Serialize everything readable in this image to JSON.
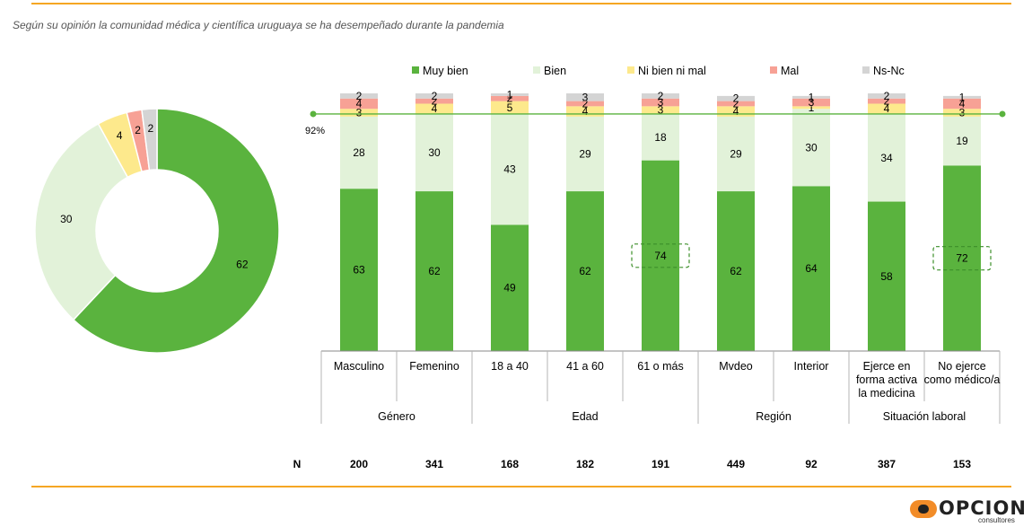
{
  "subtitle": "Según su opinión la comunidad médica y científica uruguaya se ha desempeñado durante la pandemia",
  "colors": {
    "muy_bien": "#5ab33e",
    "bien": "#e2f2d9",
    "ni_bien_ni_mal": "#fde98c",
    "mal": "#f7a195",
    "ns_nc": "#d4d4d4",
    "accent_rule": "#f5a623",
    "reference_line": "#5ab33e",
    "highlight_box": "#3d8f2a"
  },
  "logo": {
    "text": "OPCION",
    "subtitle": "consultores"
  },
  "chart_data": [
    {
      "type": "pie",
      "style": "donut",
      "labels": [
        "Muy bien",
        "Bien",
        "Ni bien ni mal",
        "Mal",
        "Ns-Nc"
      ],
      "values": [
        62,
        30,
        4,
        2,
        2
      ]
    },
    {
      "type": "bar",
      "stacked": true,
      "legend_position": "top",
      "categories": [
        "Masculino",
        "Femenino",
        "18 a 40",
        "41 a 60",
        "61 o más",
        "Mvdeo",
        "Interior",
        "Ejerce en forma activa la medicina",
        "No ejerce como médico/a"
      ],
      "groups": [
        {
          "label": "Género",
          "span": 2
        },
        {
          "label": "Edad",
          "span": 3
        },
        {
          "label": "Región",
          "span": 2
        },
        {
          "label": "Situación laboral",
          "span": 2
        }
      ],
      "series": [
        {
          "name": "Muy bien",
          "values": [
            63,
            62,
            49,
            62,
            74,
            62,
            64,
            58,
            72
          ]
        },
        {
          "name": "Bien",
          "values": [
            28,
            30,
            43,
            29,
            18,
            29,
            30,
            34,
            19
          ]
        },
        {
          "name": "Ni bien ni mal",
          "values": [
            3,
            4,
            5,
            4,
            3,
            4,
            1,
            4,
            3
          ]
        },
        {
          "name": "Mal",
          "values": [
            4,
            2,
            2,
            2,
            3,
            2,
            3,
            2,
            4
          ]
        },
        {
          "name": "Ns-Nc",
          "values": [
            2,
            2,
            1,
            3,
            2,
            2,
            1,
            2,
            1
          ]
        }
      ],
      "reference_line": {
        "value": 92,
        "label": "92%"
      },
      "highlighted": [
        "61 o más",
        "No ejerce como médico/a"
      ],
      "n_label": "N",
      "n_values": [
        200,
        341,
        168,
        182,
        191,
        449,
        92,
        387,
        153
      ]
    }
  ]
}
